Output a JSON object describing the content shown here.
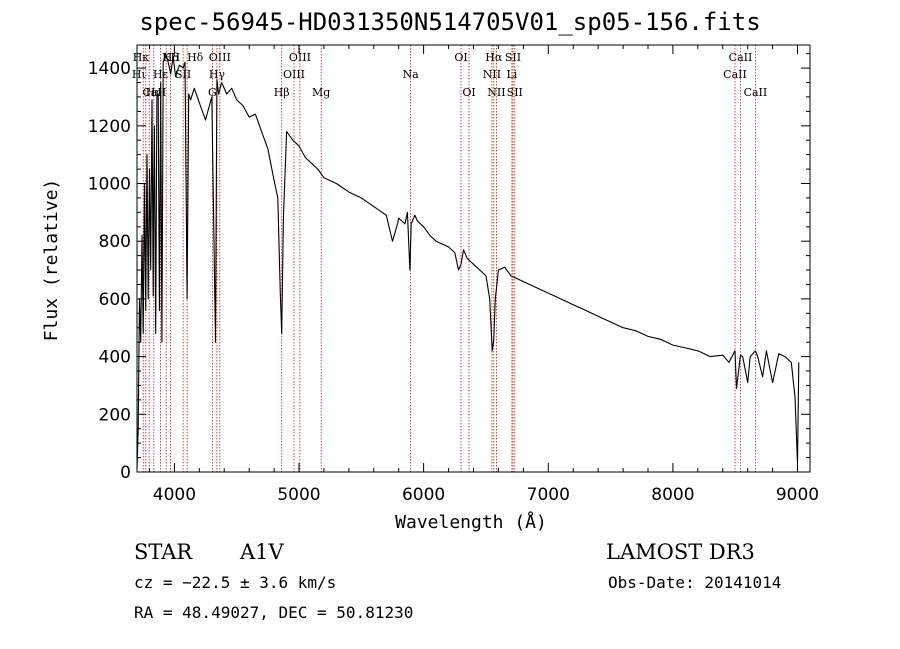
{
  "header": {
    "title": "spec-56945-HD031350N514705V01_sp05-156.fits"
  },
  "info": {
    "object_class": "STAR",
    "subclass": "A1V",
    "survey": "LAMOST DR3",
    "redshift_line": "cz = −22.5 ± 3.6 km/s",
    "obs_date": "Obs-Date: 20141014",
    "coords": "RA =  48.49027, DEC =  50.81230"
  },
  "colors": {
    "line": "#000000",
    "marker": "#b22222",
    "axis": "#000000"
  },
  "chart_data": {
    "type": "line",
    "title": "spec-56945-HD031350N514705V01_sp05-156.fits",
    "xlabel": "Wavelength (Å)",
    "ylabel": "Flux (relative)",
    "xlim": [
      3700,
      9100
    ],
    "ylim": [
      0,
      1480
    ],
    "xticks": [
      4000,
      5000,
      6000,
      7000,
      8000,
      9000
    ],
    "yticks": [
      0,
      200,
      400,
      600,
      800,
      1000,
      1200,
      1400
    ],
    "grid": false,
    "series": [
      {
        "name": "flux",
        "x": [
          3700,
          3710,
          3720,
          3730,
          3740,
          3750,
          3760,
          3770,
          3780,
          3790,
          3800,
          3810,
          3820,
          3830,
          3835,
          3840,
          3850,
          3860,
          3870,
          3880,
          3890,
          3900,
          3910,
          3930,
          3950,
          3970,
          3990,
          4010,
          4040,
          4070,
          4085,
          4102,
          4115,
          4130,
          4160,
          4200,
          4250,
          4300,
          4330,
          4341,
          4355,
          4380,
          4420,
          4460,
          4500,
          4550,
          4600,
          4650,
          4700,
          4750,
          4800,
          4830,
          4850,
          4861,
          4875,
          4900,
          4950,
          5000,
          5050,
          5100,
          5150,
          5200,
          5300,
          5400,
          5500,
          5600,
          5700,
          5750,
          5790,
          5800,
          5850,
          5870,
          5890,
          5900,
          5930,
          5950,
          6000,
          6050,
          6100,
          6200,
          6250,
          6280,
          6300,
          6320,
          6350,
          6400,
          6450,
          6500,
          6530,
          6550,
          6563,
          6575,
          6600,
          6650,
          6700,
          6800,
          6900,
          7000,
          7100,
          7200,
          7300,
          7400,
          7500,
          7600,
          7700,
          7800,
          7900,
          8000,
          8100,
          8200,
          8300,
          8400,
          8450,
          8498,
          8510,
          8542,
          8560,
          8600,
          8620,
          8662,
          8680,
          8720,
          8750,
          8800,
          8850,
          8900,
          8950,
          8980,
          9000,
          9010
        ],
        "values": [
          10,
          150,
          600,
          450,
          820,
          480,
          1000,
          560,
          1100,
          600,
          1050,
          700,
          1290,
          610,
          1010,
          1200,
          480,
          1300,
          1310,
          560,
          1350,
          450,
          1420,
          1450,
          1420,
          1380,
          1440,
          1370,
          1410,
          1400,
          1420,
          600,
          1310,
          1290,
          1330,
          1280,
          1220,
          1300,
          450,
          1360,
          1310,
          1350,
          1310,
          1330,
          1290,
          1270,
          1230,
          1240,
          1180,
          1120,
          1010,
          950,
          620,
          480,
          880,
          1180,
          1150,
          1130,
          1090,
          1070,
          1050,
          1020,
          1000,
          970,
          950,
          920,
          890,
          800,
          860,
          880,
          860,
          900,
          700,
          860,
          890,
          870,
          850,
          820,
          800,
          780,
          760,
          700,
          720,
          770,
          740,
          720,
          700,
          680,
          600,
          420,
          460,
          600,
          700,
          710,
          680,
          660,
          640,
          620,
          600,
          580,
          560,
          540,
          520,
          500,
          490,
          470,
          460,
          440,
          430,
          420,
          400,
          405,
          380,
          420,
          290,
          405,
          400,
          310,
          400,
          420,
          400,
          330,
          420,
          310,
          410,
          400,
          380,
          260,
          30,
          380
        ]
      }
    ],
    "annotations": [
      {
        "label": "CaII",
        "x": 3934,
        "row": 2,
        "ha": "right"
      },
      {
        "label": "Hδ",
        "x": 3970,
        "row": 0,
        "ha": "center"
      },
      {
        "label": "Hε",
        "x": 3889,
        "row": 1,
        "ha": "center"
      },
      {
        "label": "Hκ",
        "x": 3798,
        "row": 0,
        "ha": "right"
      },
      {
        "label": "Hι",
        "x": 3771,
        "row": 1,
        "ha": "right"
      },
      {
        "label": "K",
        "x": 3934,
        "row": 0,
        "ha": "center"
      },
      {
        "label": "H",
        "x": 3969,
        "row": 0,
        "ha": "left"
      },
      {
        "label": "Hη",
        "x": 3835,
        "row": 2,
        "ha": "center"
      },
      {
        "label": "SII",
        "x": 4070,
        "row": 1,
        "ha": "center"
      },
      {
        "label": "Hδ",
        "x": 4102,
        "row": 0,
        "ha": "left"
      },
      {
        "label": "OIII",
        "x": 4364,
        "row": 0,
        "ha": "center"
      },
      {
        "label": "Hγ",
        "x": 4341,
        "row": 1,
        "ha": "center"
      },
      {
        "label": "G",
        "x": 4305,
        "row": 2,
        "ha": "center"
      },
      {
        "label": "Hβ",
        "x": 4861,
        "row": 2,
        "ha": "center"
      },
      {
        "label": "OIII",
        "x": 4960,
        "row": 1,
        "ha": "center"
      },
      {
        "label": "OIII",
        "x": 5007,
        "row": 0,
        "ha": "center"
      },
      {
        "label": "Mg",
        "x": 5178,
        "row": 2,
        "ha": "center"
      },
      {
        "label": "Na",
        "x": 5895,
        "row": 1,
        "ha": "center"
      },
      {
        "label": "OI",
        "x": 6300,
        "row": 0,
        "ha": "center"
      },
      {
        "label": "OI",
        "x": 6364,
        "row": 2,
        "ha": "center"
      },
      {
        "label": "Hα",
        "x": 6563,
        "row": 0,
        "ha": "center"
      },
      {
        "label": "NII",
        "x": 6548,
        "row": 1,
        "ha": "center"
      },
      {
        "label": "NII",
        "x": 6584,
        "row": 2,
        "ha": "center"
      },
      {
        "label": "SII",
        "x": 6717,
        "row": 0,
        "ha": "center"
      },
      {
        "label": "Li",
        "x": 6708,
        "row": 1,
        "ha": "center"
      },
      {
        "label": "SII",
        "x": 6731,
        "row": 2,
        "ha": "center"
      },
      {
        "label": "CaII",
        "x": 8542,
        "row": 0,
        "ha": "center"
      },
      {
        "label": "CaII",
        "x": 8498,
        "row": 1,
        "ha": "center"
      },
      {
        "label": "CaII",
        "x": 8662,
        "row": 2,
        "ha": "center"
      }
    ],
    "marker_lines": [
      3750,
      3771,
      3798,
      3835,
      3889,
      3934,
      3969,
      4070,
      4102,
      4305,
      4341,
      4364,
      4861,
      4960,
      5007,
      5178,
      5895,
      6300,
      6364,
      6548,
      6563,
      6584,
      6708,
      6717,
      6731,
      8498,
      8542,
      8662
    ]
  }
}
